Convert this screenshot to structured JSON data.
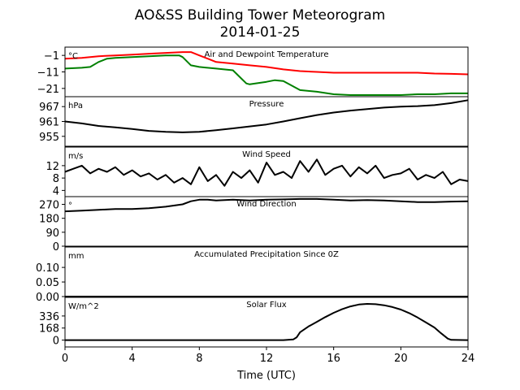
{
  "figure": {
    "title_line1": "AO&SS Building Tower Meteorogram",
    "title_line2": "2014-01-25",
    "xlabel": "Time (UTC)"
  },
  "chart_data": [
    {
      "type": "line",
      "title": "Air and Dewpoint Temperature",
      "unit": "°C",
      "yticks": [
        -1,
        -11,
        -21
      ],
      "ylim": [
        -26,
        4
      ],
      "xlim": [
        0,
        24
      ],
      "xticks": [
        0,
        4,
        8,
        12,
        16,
        20,
        24
      ],
      "series": [
        {
          "color": "#ff0000",
          "x": [
            0,
            1,
            2,
            3,
            4,
            5,
            6,
            7,
            7.5,
            8,
            8.5,
            9,
            10,
            11,
            12,
            13,
            14,
            15,
            16,
            17,
            18,
            19,
            20,
            21,
            22,
            23,
            24
          ],
          "y": [
            -3,
            -2.5,
            -1.5,
            -1,
            -0.5,
            0,
            0.5,
            1,
            1,
            -1,
            -3,
            -5,
            -6,
            -7,
            -8,
            -9.5,
            -10.5,
            -11,
            -11.5,
            -11.5,
            -11.5,
            -11.5,
            -11.5,
            -11.5,
            -12,
            -12.2,
            -12.5
          ]
        },
        {
          "color": "#008000",
          "x": [
            0,
            1,
            1.5,
            2,
            2.5,
            3,
            4,
            5,
            6,
            6.8,
            7,
            7.5,
            8,
            9,
            10,
            10.5,
            10.8,
            11,
            12,
            12.5,
            13,
            14,
            15,
            16,
            17,
            18,
            19,
            20,
            21,
            22,
            23,
            24
          ],
          "y": [
            -9,
            -8.5,
            -8,
            -5,
            -3,
            -2.5,
            -2,
            -1.5,
            -1,
            -1,
            -2,
            -7,
            -8,
            -9,
            -10,
            -15,
            -18,
            -18.5,
            -17,
            -16,
            -16.5,
            -22,
            -23,
            -24.5,
            -25,
            -25,
            -25,
            -25,
            -24.5,
            -24.5,
            -24,
            -24
          ]
        }
      ]
    },
    {
      "type": "line",
      "title": "Pressure",
      "unit": "hPa",
      "yticks": [
        967,
        961,
        955
      ],
      "ylim": [
        951,
        971
      ],
      "series": [
        {
          "color": "#000000",
          "x": [
            0,
            1,
            2,
            3,
            4,
            5,
            6,
            7,
            8,
            9,
            10,
            11,
            12,
            13,
            14,
            15,
            16,
            17,
            18,
            19,
            20,
            21,
            22,
            23,
            24
          ],
          "y": [
            961,
            960.2,
            959.2,
            958.6,
            958,
            957.2,
            956.8,
            956.6,
            956.8,
            957.5,
            958.2,
            959,
            959.8,
            961,
            962.3,
            963.6,
            964.6,
            965.4,
            966,
            966.6,
            967,
            967.2,
            967.6,
            968.4,
            969.6
          ]
        }
      ]
    },
    {
      "type": "line",
      "title": "Wind Speed",
      "unit": "m/s",
      "yticks": [
        12,
        8,
        4
      ],
      "ylim": [
        2,
        18
      ],
      "series": [
        {
          "color": "#000000",
          "x": [
            0,
            0.5,
            1,
            1.5,
            2,
            2.5,
            3,
            3.5,
            4,
            4.5,
            5,
            5.5,
            6,
            6.5,
            7,
            7.5,
            8,
            8.5,
            9,
            9.5,
            10,
            10.5,
            11,
            11.5,
            12,
            12.5,
            13,
            13.5,
            14,
            14.5,
            15,
            15.5,
            16,
            16.5,
            17,
            17.5,
            18,
            18.5,
            19,
            19.5,
            20,
            20.5,
            21,
            21.5,
            22,
            22.5,
            23,
            23.5,
            24
          ],
          "y": [
            10,
            11,
            12,
            9.5,
            11,
            10,
            11.5,
            9,
            10.5,
            8.5,
            9.5,
            7.5,
            9,
            6.5,
            8,
            6,
            11.5,
            7,
            9,
            5.5,
            10,
            8,
            10.5,
            6.5,
            13,
            9,
            10,
            8,
            13.5,
            10,
            14,
            9,
            11,
            12,
            8.5,
            11.5,
            9.5,
            12,
            8,
            9,
            9.5,
            11,
            7.5,
            9,
            8,
            10,
            6,
            7.5,
            7
          ]
        }
      ]
    },
    {
      "type": "line",
      "title": "Wind Direction",
      "unit": "°",
      "yticks": [
        270,
        180,
        90,
        0
      ],
      "ylim": [
        0,
        320
      ],
      "series": [
        {
          "color": "#000000",
          "x": [
            0,
            1,
            2,
            3,
            4,
            5,
            6,
            7,
            7.5,
            8,
            8.5,
            9,
            10,
            11,
            12,
            13,
            14,
            15,
            16,
            17,
            18,
            19,
            20,
            21,
            22,
            23,
            24
          ],
          "y": [
            225,
            230,
            235,
            240,
            240,
            245,
            255,
            270,
            290,
            300,
            300,
            295,
            300,
            295,
            300,
            302,
            305,
            305,
            300,
            295,
            298,
            295,
            290,
            285,
            285,
            288,
            290
          ]
        }
      ]
    },
    {
      "type": "line",
      "title": "Accumulated Precipitation Since 0Z",
      "unit": "mm",
      "yticks": [
        0.1,
        0.05,
        0.0
      ],
      "ytick_labels": [
        "0.10",
        "0.05",
        "0.00"
      ],
      "ylim": [
        0,
        0.17
      ],
      "series": [
        {
          "color": "#000000",
          "x": [
            0,
            24
          ],
          "y": [
            0,
            0
          ]
        }
      ]
    },
    {
      "type": "line",
      "title": "Solar Flux",
      "unit": "W/m^2",
      "yticks": [
        336,
        168,
        0
      ],
      "ylim": [
        -95,
        595
      ],
      "series": [
        {
          "color": "#000000",
          "x": [
            0,
            13,
            13.6,
            13.8,
            14,
            14.5,
            15,
            15.5,
            16,
            16.5,
            17,
            17.5,
            18,
            18.5,
            19,
            19.5,
            20,
            20.5,
            21,
            21.5,
            22,
            22.4,
            22.8,
            23,
            24
          ],
          "y": [
            0,
            0,
            10,
            40,
            110,
            190,
            255,
            320,
            380,
            430,
            470,
            495,
            505,
            500,
            485,
            460,
            425,
            375,
            315,
            245,
            175,
            95,
            20,
            3,
            0
          ]
        }
      ]
    }
  ]
}
